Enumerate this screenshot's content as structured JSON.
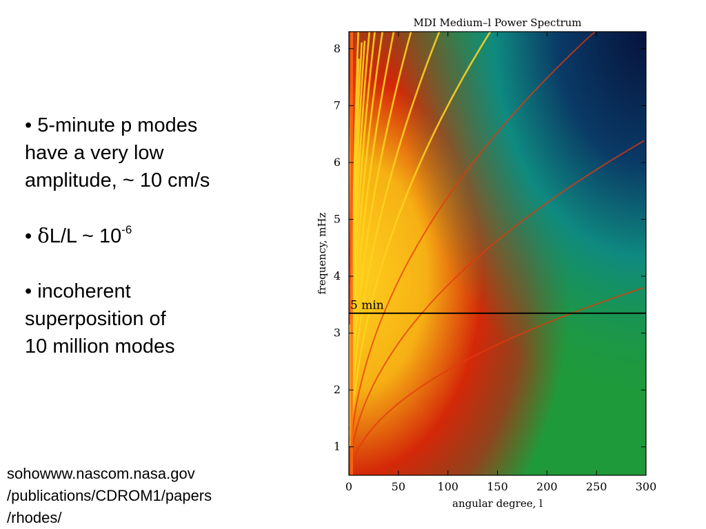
{
  "slide": {
    "bullets": [
      {
        "text": "• 5-minute p modes\nhave a very low\namplitude, ~ 10 cm/s"
      },
      {
        "prefix": "• ",
        "delta": "δ",
        "text": "L/L ~ 10",
        "superscript": "-6"
      },
      {
        "text": "• incoherent\nsuperposition of\n10 million modes"
      }
    ],
    "source": [
      "sohowww.nascom.nasa.gov",
      "/publications/CDROM1/papers",
      "/rhodes/"
    ]
  },
  "chart_data": {
    "type": "heatmap",
    "title": "MDI Medium–l Power Spectrum",
    "xlabel": "angular degree, l",
    "ylabel": "frequency, mHz",
    "xlim": [
      0,
      300
    ],
    "ylim": [
      0.5,
      8.3
    ],
    "xticks": [
      0,
      50,
      100,
      150,
      200,
      250,
      300
    ],
    "yticks": [
      1,
      2,
      3,
      4,
      5,
      6,
      7,
      8
    ],
    "annotations": [
      {
        "label": "5 min",
        "type": "horizontal-line",
        "y": 3.35
      }
    ],
    "colors": {
      "high": "#ffd21e",
      "mid": "#d42808",
      "low": "#1e9a3c",
      "lowest": "#06123c"
    }
  }
}
